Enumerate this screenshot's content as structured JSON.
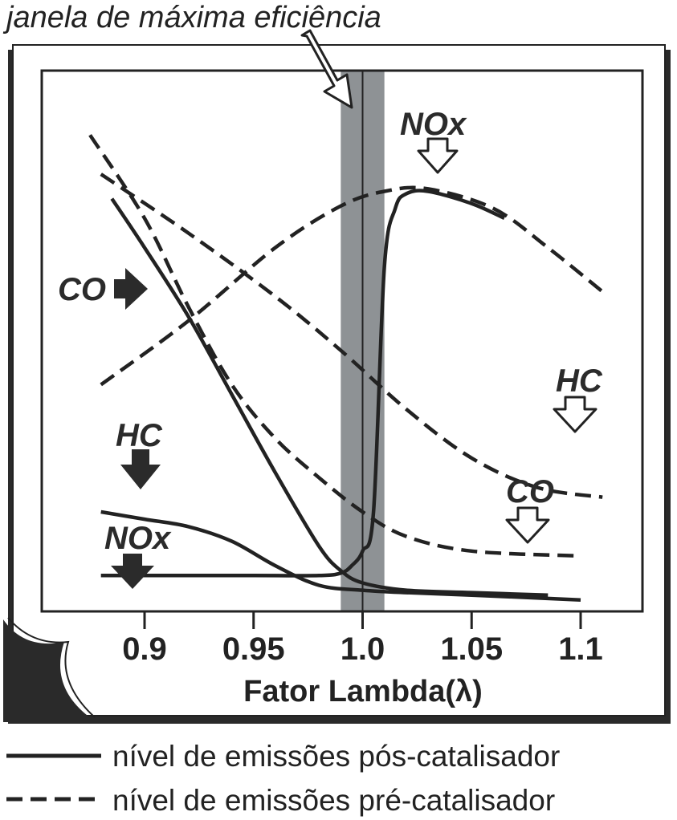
{
  "chart_data": {
    "type": "line",
    "title": "janela de máxima eficiência",
    "xlabel": "Fator Lambda(λ)",
    "xlim": [
      0.875,
      1.12
    ],
    "ylim": [
      0,
      1
    ],
    "x_ticks": [
      "0.9",
      "0.95",
      "1.0",
      "1.05",
      "1.1"
    ],
    "x_tick_values": [
      0.9,
      0.95,
      1.0,
      1.05,
      1.1
    ],
    "window": [
      0.99,
      1.01
    ],
    "series": [
      {
        "name": "NOx",
        "stage": "pós-catalisador",
        "style": "solid",
        "x": [
          0.88,
          0.95,
          0.98,
          0.99,
          0.995,
          1.0,
          1.005,
          1.01,
          1.015,
          1.02,
          1.03,
          1.05,
          1.065
        ],
        "y": [
          0.07,
          0.07,
          0.07,
          0.075,
          0.09,
          0.12,
          0.2,
          0.7,
          0.82,
          0.85,
          0.855,
          0.83,
          0.8
        ]
      },
      {
        "name": "HC",
        "stage": "pós-catalisador",
        "style": "solid",
        "x": [
          0.88,
          0.9,
          0.92,
          0.94,
          0.96,
          0.98,
          1.0,
          1.02,
          1.05,
          1.1
        ],
        "y": [
          0.2,
          0.185,
          0.17,
          0.14,
          0.09,
          0.05,
          0.04,
          0.035,
          0.03,
          0.02
        ]
      },
      {
        "name": "CO",
        "stage": "pós-catalisador",
        "style": "solid",
        "x": [
          0.885,
          0.9,
          0.92,
          0.94,
          0.96,
          0.98,
          0.99,
          1.0,
          1.02,
          1.05,
          1.085
        ],
        "y": [
          0.84,
          0.74,
          0.6,
          0.44,
          0.28,
          0.13,
          0.08,
          0.055,
          0.04,
          0.035,
          0.03
        ]
      },
      {
        "name": "NOx",
        "stage": "pré-catalisador",
        "style": "dashed",
        "x": [
          0.88,
          0.92,
          0.96,
          0.99,
          1.01,
          1.03,
          1.06,
          1.085,
          1.11
        ],
        "y": [
          0.46,
          0.59,
          0.74,
          0.825,
          0.855,
          0.86,
          0.82,
          0.74,
          0.65
        ]
      },
      {
        "name": "HC",
        "stage": "pré-catalisador",
        "style": "dashed",
        "x": [
          0.88,
          0.92,
          0.96,
          0.99,
          1.02,
          1.05,
          1.08,
          1.11
        ],
        "y": [
          0.89,
          0.77,
          0.64,
          0.53,
          0.41,
          0.31,
          0.25,
          0.23
        ]
      },
      {
        "name": "CO",
        "stage": "pré-catalisador",
        "style": "dashed",
        "x": [
          0.875,
          0.9,
          0.92,
          0.94,
          0.96,
          0.98,
          1.0,
          1.02,
          1.05,
          1.1
        ],
        "y": [
          0.97,
          0.8,
          0.62,
          0.46,
          0.35,
          0.27,
          0.2,
          0.15,
          0.12,
          0.11
        ]
      }
    ],
    "annotations": {
      "pre_nox": "NOx",
      "pre_hc": "HC",
      "pre_co": "CO",
      "post_co": "CO",
      "post_hc": "HC",
      "post_nox": "NOx"
    },
    "legend": [
      {
        "style": "solid",
        "label": "nível de emissões pós-catalisador"
      },
      {
        "style": "dashed",
        "label": "nível de emissões pré-catalisador"
      }
    ],
    "colors": {
      "ink": "#222222",
      "window_band": "#8e9295",
      "paper": "#ffffff",
      "shadow": "#2a2a2a"
    }
  }
}
